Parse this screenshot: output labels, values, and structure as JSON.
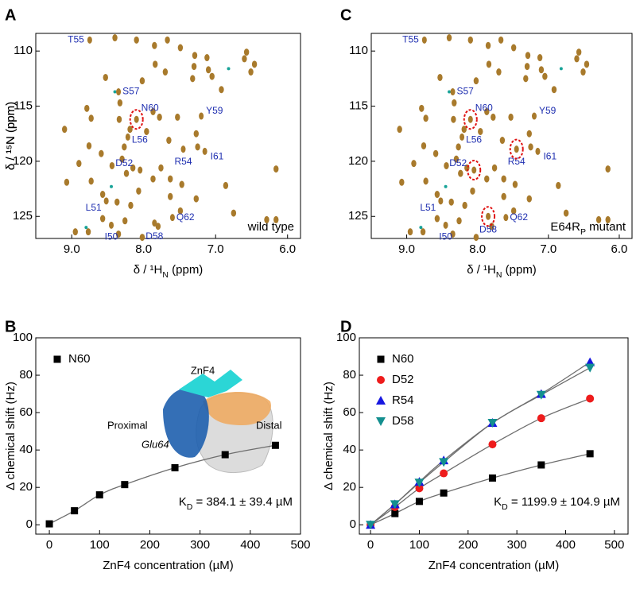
{
  "chart_data": [
    {
      "panel": "A",
      "type": "scatter",
      "xlabel": {
        "main": "δ / ¹H",
        "sub": "N",
        "tail": " (ppm)"
      },
      "ylabel": "δ / ¹⁵N (ppm)",
      "note": {
        "main": "wild type"
      },
      "xlim": [
        9.5,
        5.82
      ],
      "ylim": [
        127.0,
        108.4
      ],
      "xticks": [
        {
          "value": 9,
          "label": "9.0"
        },
        {
          "value": 8,
          "label": "8.0"
        },
        {
          "value": 7,
          "label": "7.0"
        },
        {
          "value": 6,
          "label": "6.0"
        }
      ],
      "yticks": [
        110,
        115,
        120,
        125
      ],
      "series": [
        {
          "color": "#a87a2c",
          "x": [
            8.4,
            8.1,
            7.85,
            7.67,
            7.49,
            7.29,
            7.3,
            7.12,
            7.1,
            7.05,
            6.6,
            6.51,
            6.57,
            6.46,
            7.84,
            7.7,
            7.32,
            6.92,
            8.53,
            8.02,
            8.79,
            8.33,
            8.73,
            8.34,
            7.87,
            7.78,
            7.53,
            9.1,
            8.19,
            7.96,
            7.65,
            8.76,
            8.59,
            8.27,
            8.3,
            7.27,
            7.25,
            8.9,
            8.44,
            8.15,
            7.76,
            7.87,
            7.63,
            7.47,
            6.86,
            6.16,
            9.07,
            8.73,
            8.24,
            8.07,
            8.57,
            8.37,
            8.18,
            7.63,
            7.27,
            6.75,
            6.29,
            6.16,
            8.57,
            8.26,
            7.8,
            7.49,
            8.95,
            8.77,
            8.35,
            8.02
          ],
          "values": [
            108.8,
            109.0,
            109.5,
            109.0,
            109.7,
            110.4,
            111.4,
            110.6,
            111.7,
            112.3,
            110.7,
            111.9,
            110.1,
            111.2,
            111.2,
            111.9,
            112.5,
            113.5,
            112.4,
            112.7,
            115.2,
            114.7,
            116.1,
            116.2,
            115.5,
            116.0,
            116.0,
            117.1,
            117.1,
            117.3,
            118.1,
            118.6,
            119.3,
            118.7,
            119.8,
            117.5,
            118.7,
            120.2,
            120.4,
            120.6,
            120.6,
            121.6,
            121.6,
            122.1,
            122.2,
            120.7,
            121.9,
            121.8,
            121.1,
            122.7,
            123.0,
            123.7,
            124.0,
            123.2,
            123.4,
            124.7,
            125.3,
            125.3,
            125.2,
            125.4,
            125.9,
            124.5,
            126.4,
            126.4,
            126.6,
            126.9
          ]
        },
        {
          "color": "#18a398",
          "x": [
            8.75,
            8.4,
            6.82,
            7.6,
            8.45,
            8.8
          ],
          "values": [
            109.0,
            113.7,
            111.6,
            125.1,
            122.3,
            126.0
          ]
        }
      ],
      "peaks_label_color": "#1f2fb0",
      "labeled_peaks": [
        {
          "text": "T55",
          "x": 8.75,
          "y": 109.0,
          "circled": false
        },
        {
          "text": "S57",
          "x": 8.35,
          "y": 113.7,
          "circled": false
        },
        {
          "text": "N60",
          "x": 8.1,
          "y": 116.2,
          "circled": true
        },
        {
          "text": "Y59",
          "x": 7.2,
          "y": 115.9,
          "circled": false
        },
        {
          "text": "L56",
          "x": 8.22,
          "y": 117.8,
          "circled": false
        },
        {
          "text": "D52",
          "x": 8.05,
          "y": 120.8,
          "circled": false
        },
        {
          "text": "R54",
          "x": 7.45,
          "y": 118.9,
          "circled": false
        },
        {
          "text": "I61",
          "x": 7.15,
          "y": 119.1,
          "circled": false
        },
        {
          "text": "L51",
          "x": 8.52,
          "y": 123.6,
          "circled": false
        },
        {
          "text": "I50",
          "x": 8.45,
          "y": 125.8,
          "circled": false
        },
        {
          "text": "D58",
          "x": 7.85,
          "y": 125.6,
          "circled": false
        },
        {
          "text": "Q62",
          "x": 7.6,
          "y": 125.1,
          "circled": false
        }
      ]
    },
    {
      "panel": "B",
      "type": "line",
      "xlabel": {
        "main": "ZnF4 concentration (µM)"
      },
      "ylabel": "Δ chemical shift (Hz)",
      "note": {
        "main": "K",
        "sub": "D",
        "tail": " = 384.1 ± 39.4 µM"
      },
      "xlim": [
        -27,
        500
      ],
      "ylim": [
        -5,
        100
      ],
      "xticks": [
        0,
        100,
        200,
        300,
        400,
        500
      ],
      "yticks": [
        0,
        20,
        40,
        60,
        80,
        100
      ],
      "x": [
        0,
        50,
        100,
        150,
        250,
        350,
        450
      ],
      "fit_color": "#6e6e6e",
      "series": [
        {
          "name": "N60",
          "color": "#000000",
          "marker": "square",
          "values": [
            0.5,
            7.5,
            16,
            21.5,
            30.5,
            37.5,
            42.5
          ]
        }
      ],
      "inset_labels": {
        "znf4": "ZnF4",
        "proximal": "Proximal",
        "glu64": "Glu64",
        "distal": "Distal"
      }
    },
    {
      "panel": "C",
      "type": "scatter",
      "xlabel": {
        "main": "δ / ¹H",
        "sub": "N",
        "tail": " (ppm)"
      },
      "ylabel": "δ / ¹⁵N (ppm)",
      "note": {
        "main": "E64R",
        "sub": "P",
        "tail": " mutant"
      },
      "xlim": [
        9.5,
        5.82
      ],
      "ylim": [
        127.0,
        108.4
      ],
      "xticks": [
        {
          "value": 9,
          "label": "9.0"
        },
        {
          "value": 8,
          "label": "8.0"
        },
        {
          "value": 7,
          "label": "7.0"
        },
        {
          "value": 6,
          "label": "6.0"
        }
      ],
      "yticks": [
        110,
        115,
        120,
        125
      ],
      "series": [
        {
          "color": "#a87a2c",
          "x": [
            8.4,
            8.1,
            7.85,
            7.67,
            7.49,
            7.29,
            7.3,
            7.12,
            7.1,
            7.05,
            6.6,
            6.51,
            6.57,
            6.46,
            7.84,
            7.7,
            7.32,
            6.92,
            8.53,
            8.02,
            8.79,
            8.33,
            8.73,
            8.34,
            7.87,
            7.78,
            7.53,
            9.1,
            8.19,
            7.96,
            7.65,
            8.76,
            8.59,
            8.27,
            8.3,
            7.27,
            7.25,
            8.9,
            8.44,
            8.15,
            7.76,
            7.87,
            7.63,
            7.47,
            6.86,
            6.16,
            9.07,
            8.73,
            8.24,
            8.07,
            8.57,
            8.37,
            8.18,
            7.63,
            7.27,
            6.75,
            6.29,
            6.16,
            8.57,
            8.26,
            7.8,
            7.49,
            8.95,
            8.77,
            8.35,
            8.02
          ],
          "values": [
            108.8,
            109.0,
            109.5,
            109.0,
            109.7,
            110.4,
            111.4,
            110.6,
            111.7,
            112.3,
            110.7,
            111.9,
            110.1,
            111.2,
            111.2,
            111.9,
            112.5,
            113.5,
            112.4,
            112.7,
            115.2,
            114.7,
            116.1,
            116.2,
            115.5,
            116.0,
            116.0,
            117.1,
            117.1,
            117.3,
            118.1,
            118.6,
            119.3,
            118.7,
            119.8,
            117.5,
            118.7,
            120.2,
            120.4,
            120.6,
            120.6,
            121.6,
            121.6,
            122.1,
            122.2,
            120.7,
            121.9,
            121.8,
            121.1,
            122.7,
            123.0,
            123.7,
            124.0,
            123.2,
            123.4,
            124.7,
            125.3,
            125.3,
            125.2,
            125.4,
            125.9,
            124.5,
            126.4,
            126.4,
            126.6,
            126.9
          ]
        },
        {
          "color": "#18a398",
          "x": [
            8.75,
            8.4,
            6.82,
            7.6,
            8.45,
            8.8
          ],
          "values": [
            109.0,
            113.7,
            111.6,
            125.1,
            122.3,
            126.0
          ]
        }
      ],
      "peaks_label_color": "#1f2fb0",
      "labeled_peaks": [
        {
          "text": "T55",
          "x": 8.75,
          "y": 109.0,
          "circled": false
        },
        {
          "text": "S57",
          "x": 8.35,
          "y": 113.7,
          "circled": false
        },
        {
          "text": "N60",
          "x": 8.1,
          "y": 116.2,
          "circled": true
        },
        {
          "text": "Y59",
          "x": 7.2,
          "y": 115.9,
          "circled": false
        },
        {
          "text": "L56",
          "x": 8.22,
          "y": 117.8,
          "circled": false
        },
        {
          "text": "D52",
          "x": 8.05,
          "y": 120.8,
          "circled": true
        },
        {
          "text": "R54",
          "x": 7.45,
          "y": 118.9,
          "circled": true
        },
        {
          "text": "I61",
          "x": 7.15,
          "y": 119.1,
          "circled": false
        },
        {
          "text": "L51",
          "x": 8.52,
          "y": 123.6,
          "circled": false
        },
        {
          "text": "I50",
          "x": 8.45,
          "y": 125.8,
          "circled": false
        },
        {
          "text": "D58",
          "x": 7.85,
          "y": 125.0,
          "circled": true
        },
        {
          "text": "Q62",
          "x": 7.6,
          "y": 125.1,
          "circled": false
        }
      ]
    },
    {
      "panel": "D",
      "type": "line",
      "xlabel": {
        "main": "ZnF4 concentration (µM)"
      },
      "ylabel": "Δ chemical shift (Hz)",
      "note": {
        "main": "K",
        "sub": "D",
        "tail": " = 1199.9 ± 104.9 µM"
      },
      "xlim": [
        -23,
        528
      ],
      "ylim": [
        -5,
        100
      ],
      "xticks": [
        0,
        100,
        200,
        300,
        400,
        500
      ],
      "yticks": [
        0,
        20,
        40,
        60,
        80,
        100
      ],
      "x": [
        0,
        50,
        100,
        150,
        250,
        350,
        450
      ],
      "fit_color": "#6e6e6e",
      "series": [
        {
          "name": "N60",
          "color": "#000000",
          "marker": "square",
          "values": [
            0,
            6,
            12.5,
            17,
            25,
            32,
            38
          ]
        },
        {
          "name": "D52",
          "color": "#ee1c1c",
          "marker": "circle",
          "values": [
            0,
            9.5,
            19.5,
            27.5,
            43,
            57,
            67.5
          ]
        },
        {
          "name": "R54",
          "color": "#1717e0",
          "marker": "triangle-up",
          "values": [
            0,
            11,
            23,
            34.5,
            54.5,
            70,
            87
          ]
        },
        {
          "name": "D58",
          "color": "#138f8f",
          "marker": "triangle-down",
          "values": [
            0,
            11,
            22.5,
            33.5,
            54.5,
            69.5,
            84
          ]
        }
      ]
    }
  ]
}
